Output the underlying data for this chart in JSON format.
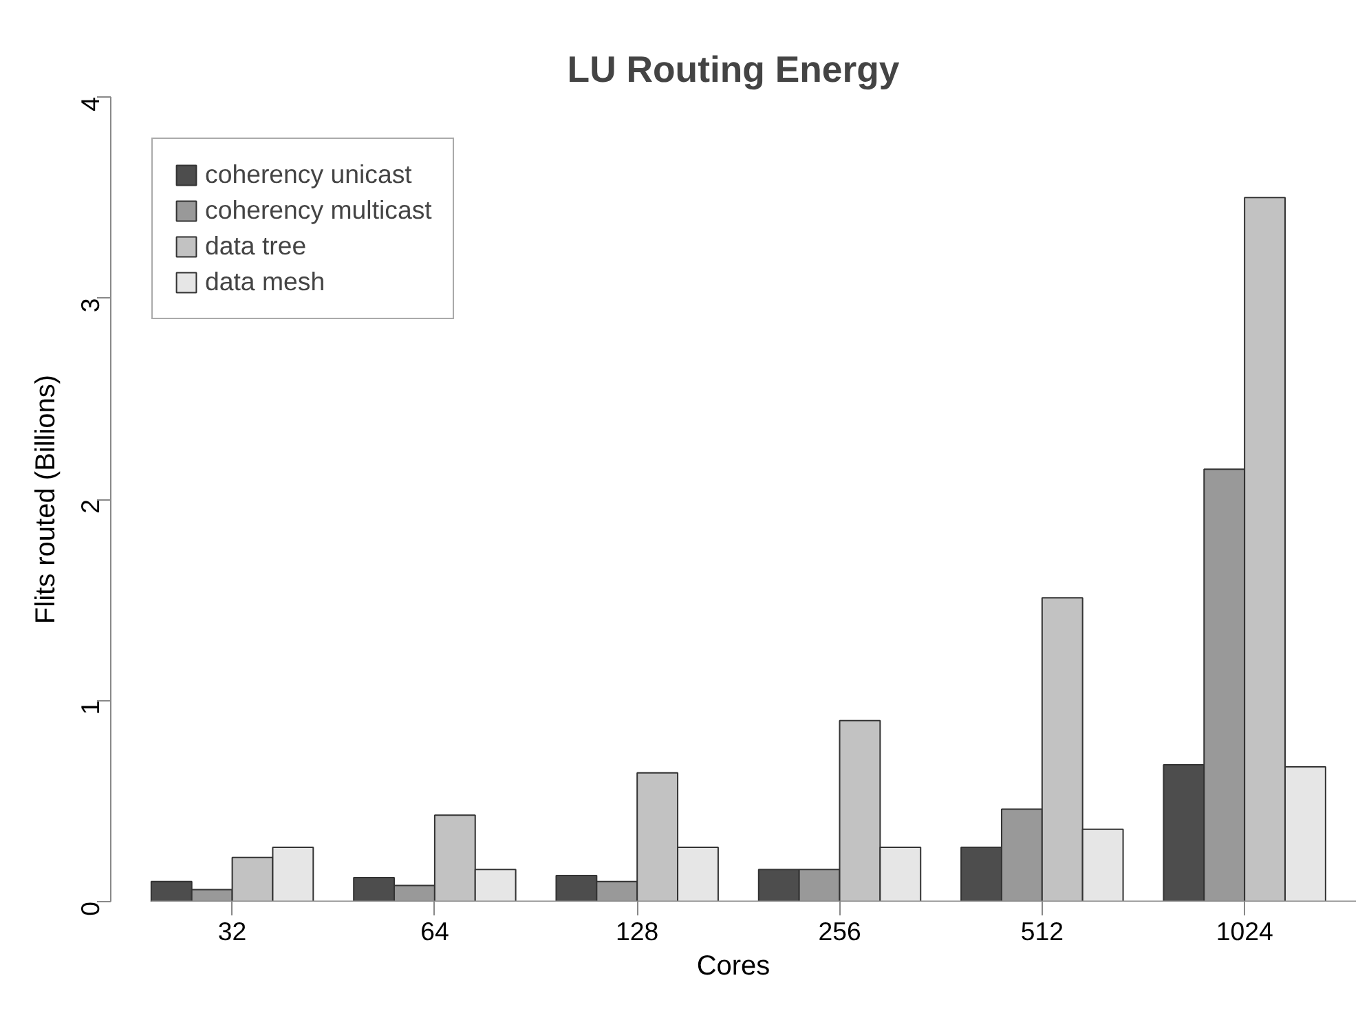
{
  "chart_data": {
    "type": "bar",
    "title": "LU Routing Energy",
    "xlabel": "Cores",
    "ylabel": "Flits routed (Billions)",
    "categories": [
      "32",
      "64",
      "128",
      "256",
      "512",
      "1024"
    ],
    "series": [
      {
        "name": "coherency unicast",
        "color": "#4d4d4d",
        "values": [
          0.1,
          0.12,
          0.13,
          0.16,
          0.27,
          0.68
        ]
      },
      {
        "name": "coherency multicast",
        "color": "#999999",
        "values": [
          0.06,
          0.08,
          0.1,
          0.16,
          0.46,
          2.15
        ]
      },
      {
        "name": "data tree",
        "color": "#c2c2c2",
        "values": [
          0.22,
          0.43,
          0.64,
          0.9,
          1.51,
          3.5
        ]
      },
      {
        "name": "data mesh",
        "color": "#e6e6e6",
        "values": [
          0.27,
          0.16,
          0.27,
          0.27,
          0.36,
          0.67
        ]
      }
    ],
    "ylim": [
      0,
      4
    ],
    "yticks": [
      0,
      1,
      2,
      3,
      4
    ],
    "grid": false,
    "legend": "top left"
  }
}
